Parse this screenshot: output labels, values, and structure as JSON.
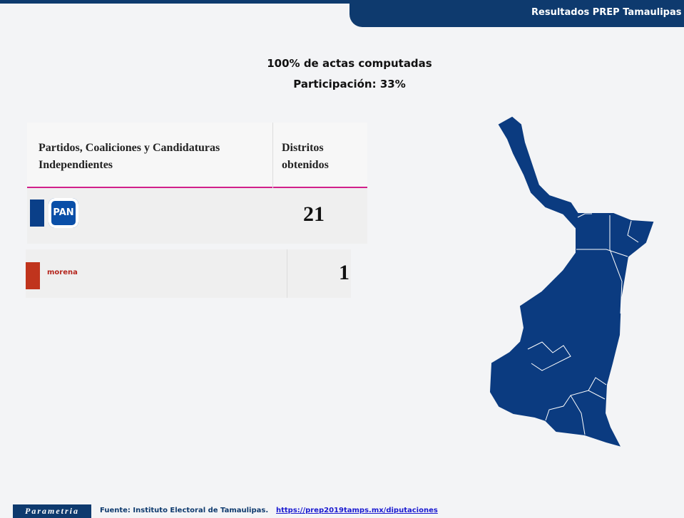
{
  "header": {
    "title": "Resultados PREP Tamaulipas"
  },
  "summary": {
    "lines": [
      "100% de actas computadas",
      "Participación: 33%"
    ]
  },
  "table": {
    "columns": [
      "Partidos, Coaliciones y Candidaturas Independientes",
      "Distritos obtenidos"
    ],
    "rows": [
      [
        "PAN",
        "21"
      ],
      [
        "morena",
        "1"
      ]
    ]
  },
  "footer": {
    "brand": "Parametria",
    "source": "Fuente: Instituto Electoral de Tamaulipas.",
    "link": "https://prep2019tamps.mx/diputaciones"
  }
}
